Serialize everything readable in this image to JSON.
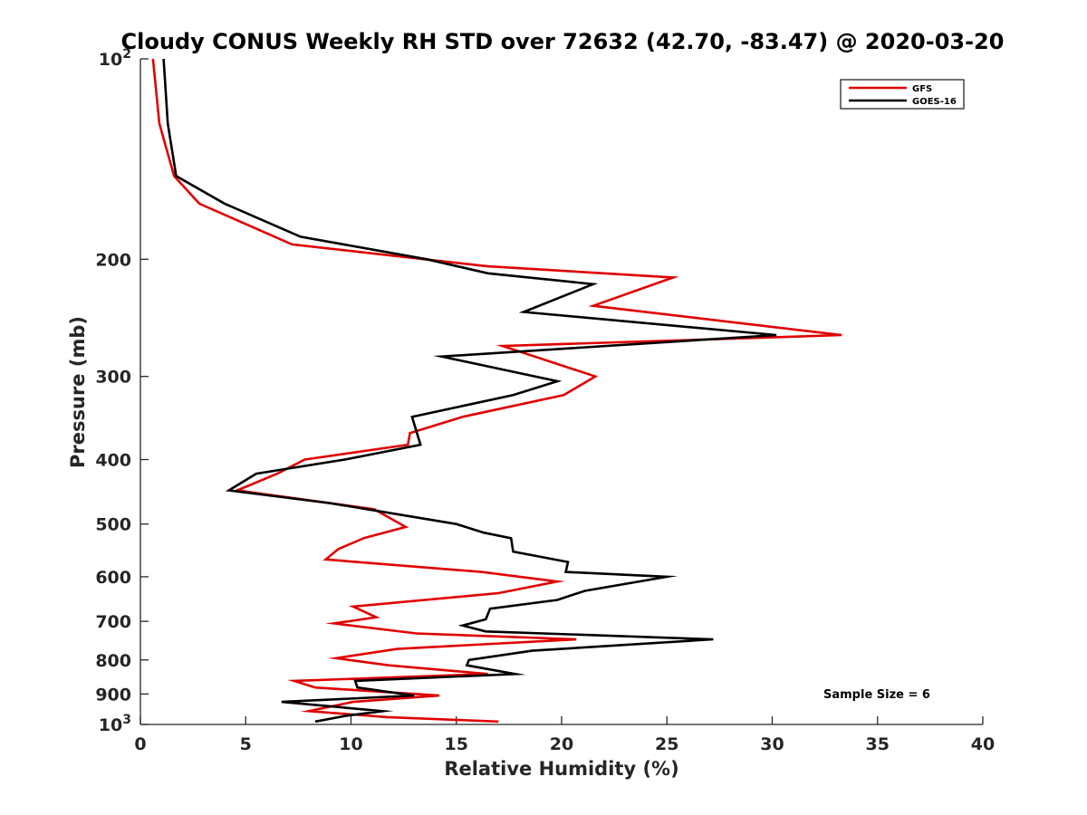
{
  "chart_data": {
    "type": "line",
    "title": "Cloudy CONUS Weekly RH STD over 72632 (42.70, -83.47) @ 2020-03-20",
    "xlabel": "Relative Humidity (%)",
    "ylabel": "Pressure (mb)",
    "xlim": [
      0,
      40
    ],
    "ylim": [
      100,
      1000
    ],
    "y_scale": "log",
    "y_reversed": true,
    "x_ticks": [
      0,
      5,
      10,
      15,
      20,
      25,
      30,
      35,
      40
    ],
    "y_ticks": [
      {
        "value": 100,
        "label": "10",
        "sup": "2"
      },
      {
        "value": 200,
        "label": "200"
      },
      {
        "value": 300,
        "label": "300"
      },
      {
        "value": 400,
        "label": "400"
      },
      {
        "value": 500,
        "label": "500"
      },
      {
        "value": 600,
        "label": "600"
      },
      {
        "value": 700,
        "label": "700"
      },
      {
        "value": 800,
        "label": "800"
      },
      {
        "value": 900,
        "label": "900"
      },
      {
        "value": 1000,
        "label": "10",
        "sup": "3"
      }
    ],
    "grid": false,
    "legend_position": "top-right",
    "annotation": "Sample Size = 6",
    "series": [
      {
        "name": "GFS",
        "color": "#e00000",
        "points": [
          [
            0.6,
            100
          ],
          [
            0.9,
            125
          ],
          [
            1.6,
            150
          ],
          [
            2.8,
            165
          ],
          [
            7.2,
            190
          ],
          [
            13.5,
            200
          ],
          [
            16.5,
            205
          ],
          [
            25.3,
            213
          ],
          [
            21.5,
            235
          ],
          [
            33.3,
            260
          ],
          [
            17.2,
            270
          ],
          [
            21.6,
            300
          ],
          [
            20.1,
            320
          ],
          [
            15.3,
            345
          ],
          [
            12.8,
            365
          ],
          [
            12.7,
            380
          ],
          [
            7.8,
            400
          ],
          [
            6.5,
            420
          ],
          [
            4.6,
            445
          ],
          [
            11.1,
            475
          ],
          [
            12.6,
            505
          ],
          [
            10.6,
            525
          ],
          [
            9.4,
            545
          ],
          [
            8.8,
            565
          ],
          [
            16.2,
            590
          ],
          [
            19.8,
            610
          ],
          [
            17.0,
            635
          ],
          [
            10.1,
            665
          ],
          [
            11.2,
            690
          ],
          [
            9.2,
            705
          ],
          [
            13.1,
            730
          ],
          [
            20.7,
            745
          ],
          [
            12.2,
            770
          ],
          [
            9.3,
            795
          ],
          [
            11.8,
            815
          ],
          [
            16.5,
            840
          ],
          [
            7.3,
            860
          ],
          [
            8.3,
            880
          ],
          [
            14.2,
            905
          ],
          [
            10.1,
            925
          ],
          [
            8.0,
            955
          ],
          [
            11.7,
            975
          ],
          [
            17.0,
            990
          ]
        ]
      },
      {
        "name": "GOES-16",
        "color": "#000000",
        "points": [
          [
            1.1,
            100
          ],
          [
            1.3,
            125
          ],
          [
            1.7,
            150
          ],
          [
            4.0,
            165
          ],
          [
            7.6,
            185
          ],
          [
            13.6,
            200
          ],
          [
            16.5,
            210
          ],
          [
            21.5,
            218
          ],
          [
            18.2,
            240
          ],
          [
            30.2,
            260
          ],
          [
            14.3,
            280
          ],
          [
            19.8,
            305
          ],
          [
            17.7,
            320
          ],
          [
            12.9,
            345
          ],
          [
            13.3,
            380
          ],
          [
            9.7,
            400
          ],
          [
            5.5,
            420
          ],
          [
            4.2,
            445
          ],
          [
            9.0,
            465
          ],
          [
            15.0,
            500
          ],
          [
            16.3,
            515
          ],
          [
            17.6,
            525
          ],
          [
            17.7,
            550
          ],
          [
            20.3,
            570
          ],
          [
            20.2,
            590
          ],
          [
            25.0,
            600
          ],
          [
            21.1,
            630
          ],
          [
            19.8,
            650
          ],
          [
            16.6,
            670
          ],
          [
            16.4,
            695
          ],
          [
            15.3,
            710
          ],
          [
            16.4,
            725
          ],
          [
            27.2,
            745
          ],
          [
            18.6,
            775
          ],
          [
            15.6,
            800
          ],
          [
            15.5,
            815
          ],
          [
            17.8,
            840
          ],
          [
            10.2,
            860
          ],
          [
            10.3,
            880
          ],
          [
            13.0,
            905
          ],
          [
            6.7,
            925
          ],
          [
            11.5,
            955
          ],
          [
            9.8,
            970
          ],
          [
            8.3,
            990
          ]
        ]
      }
    ]
  }
}
